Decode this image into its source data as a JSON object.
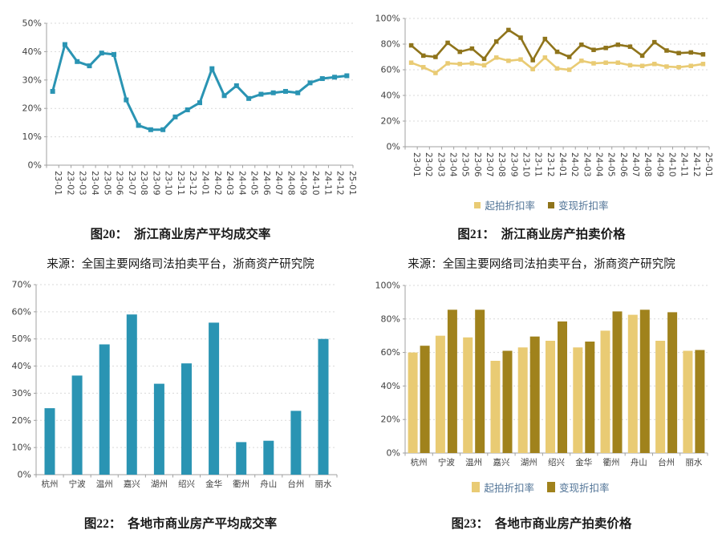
{
  "figures": {
    "fig20": {
      "caption": "图20：  浙江商业房产平均成交率",
      "source": "来源：全国主要网络司法拍卖平台，浙商资产研究院"
    },
    "fig21": {
      "caption": "图21：  浙江商业房产拍卖价格",
      "source": "来源：全国主要网络司法拍卖平台，浙商资产研究院"
    },
    "fig22": {
      "caption": "图22：  各地市商业房产平均成交率"
    },
    "fig23": {
      "caption": "图23：  各地市商业房产拍卖价格"
    }
  },
  "colors": {
    "teal": "#2a94b3",
    "light_gold": "#e9cb74",
    "dark_gold_line": "#8f741b",
    "dark_gold_bar": "#a0821c",
    "legend_text": "#507396",
    "grid": "#d9d9d9",
    "axis": "#a0a0a0",
    "tick_text": "#3f3f3f"
  },
  "chart_data": [
    {
      "id": "fig20",
      "type": "line",
      "title": "浙江商业房产平均成交率",
      "categories": [
        "23-01",
        "23-02",
        "23-03",
        "23-04",
        "23-05",
        "23-06",
        "23-07",
        "23-08",
        "23-09",
        "23-10",
        "23-11",
        "23-12",
        "24-01",
        "24-02",
        "24-03",
        "24-04",
        "24-05",
        "24-06",
        "24-07",
        "24-08",
        "24-09",
        "24-10",
        "24-11",
        "24-12",
        "25-01"
      ],
      "series": [
        {
          "color": "#2a94b3",
          "values": [
            26,
            42.5,
            36.5,
            35,
            39.5,
            39,
            23,
            14,
            12.5,
            12.5,
            17,
            19.5,
            22,
            34,
            24.5,
            28,
            23.5,
            25,
            25.5,
            26,
            25.5,
            29,
            30.5,
            31,
            31.5
          ]
        }
      ],
      "ylim": [
        0,
        50
      ],
      "ytick": 10,
      "y_unit": "%",
      "grid": true,
      "legend": false
    },
    {
      "id": "fig21",
      "type": "line",
      "title": "浙江商业房产拍卖价格",
      "categories": [
        "23-01",
        "23-02",
        "23-03",
        "23-04",
        "23-05",
        "23-06",
        "23-07",
        "23-08",
        "23-09",
        "23-10",
        "23-11",
        "23-12",
        "24-01",
        "24-02",
        "24-03",
        "24-04",
        "24-05",
        "24-06",
        "24-07",
        "24-08",
        "24-09",
        "24-10",
        "24-11",
        "24-12",
        "25-01"
      ],
      "series": [
        {
          "name": "起拍折扣率",
          "color": "#e9cb74",
          "values": [
            65.5,
            62,
            57.5,
            65,
            64.5,
            65,
            63.5,
            69.5,
            67,
            68,
            60.5,
            69.5,
            61,
            60,
            67,
            65,
            65.5,
            65.5,
            63.5,
            63,
            64.5,
            62.5,
            62,
            63,
            64.5
          ]
        },
        {
          "name": "变现折扣率",
          "color": "#8f741b",
          "values": [
            79,
            71,
            70,
            81,
            74,
            76.5,
            68.5,
            82,
            91,
            85,
            67.5,
            84,
            74,
            70,
            79.5,
            75.5,
            77,
            79.5,
            78,
            71,
            81.5,
            75,
            73,
            73.5,
            72
          ]
        }
      ],
      "ylim": [
        0,
        100
      ],
      "ytick": 20,
      "y_unit": "%",
      "grid": true,
      "legend": "bottom"
    },
    {
      "id": "fig22",
      "type": "bar",
      "title": "各地市商业房产平均成交率",
      "categories": [
        "杭州",
        "宁波",
        "温州",
        "嘉兴",
        "湖州",
        "绍兴",
        "金华",
        "衢州",
        "舟山",
        "台州",
        "丽水"
      ],
      "series": [
        {
          "color": "#2a94b3",
          "values": [
            24.5,
            36.5,
            48,
            59,
            33.5,
            41,
            56,
            12,
            12.5,
            23.5,
            50
          ]
        }
      ],
      "ylim": [
        0,
        70
      ],
      "ytick": 10,
      "y_unit": "%",
      "grid": true,
      "legend": false
    },
    {
      "id": "fig23",
      "type": "bar",
      "title": "各地市商业房产拍卖价格",
      "categories": [
        "杭州",
        "宁波",
        "温州",
        "嘉兴",
        "湖州",
        "绍兴",
        "金华",
        "衢州",
        "舟山",
        "台州",
        "丽水"
      ],
      "series": [
        {
          "name": "起拍折扣率",
          "color": "#e9cb74",
          "values": [
            60,
            70,
            69,
            55,
            63,
            67,
            63,
            73,
            82.5,
            67,
            61
          ]
        },
        {
          "name": "变现折扣率",
          "color": "#a0821c",
          "values": [
            64,
            85.5,
            85.5,
            61,
            69.5,
            78.5,
            66.5,
            84.5,
            85.5,
            84,
            61.5
          ]
        }
      ],
      "ylim": [
        0,
        100
      ],
      "ytick": 20,
      "y_unit": "%",
      "grid": true,
      "legend": "bottom"
    }
  ]
}
